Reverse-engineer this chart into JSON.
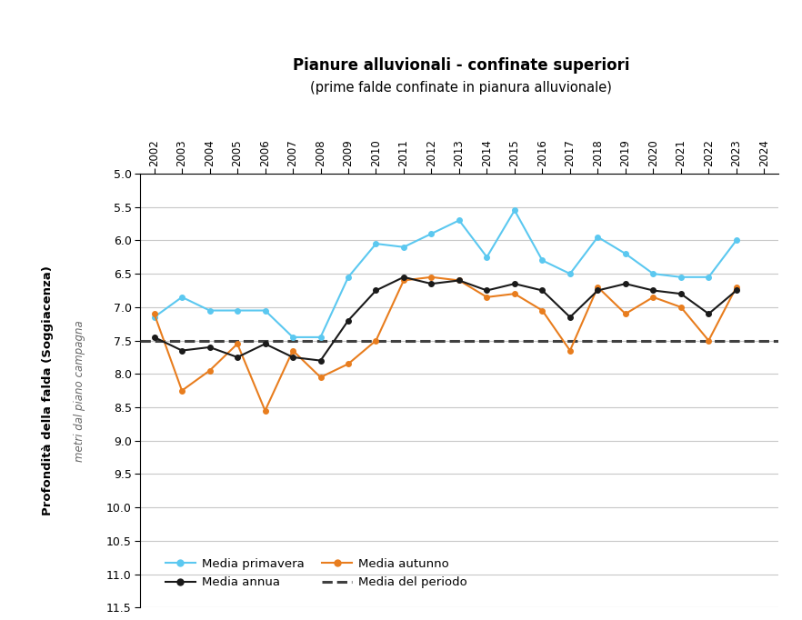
{
  "title_line1": "Pianure alluvionali - confinate superiori",
  "title_line2": "(prime falde confinate in pianura alluvionale)",
  "ylabel_main": "Profondità della falda (Soggiacenza)",
  "ylabel_italic": "metri dal piano campagna",
  "years": [
    2002,
    2003,
    2004,
    2005,
    2006,
    2007,
    2008,
    2009,
    2010,
    2011,
    2012,
    2013,
    2014,
    2015,
    2016,
    2017,
    2018,
    2019,
    2020,
    2021,
    2022,
    2023
  ],
  "media_primavera": [
    7.15,
    6.85,
    7.05,
    7.05,
    7.05,
    7.45,
    7.45,
    6.55,
    6.05,
    6.1,
    5.9,
    5.7,
    6.25,
    5.55,
    6.3,
    6.5,
    5.95,
    6.2,
    6.5,
    6.55,
    6.55,
    6.0
  ],
  "media_autunno": [
    7.1,
    8.25,
    7.95,
    7.55,
    8.55,
    7.65,
    8.05,
    7.85,
    7.5,
    6.6,
    6.55,
    6.6,
    6.85,
    6.8,
    7.05,
    7.65,
    6.7,
    7.1,
    6.85,
    7.0,
    7.5,
    6.7
  ],
  "media_annua": [
    7.45,
    7.65,
    7.6,
    7.75,
    7.55,
    7.75,
    7.8,
    7.2,
    6.75,
    6.55,
    6.65,
    6.6,
    6.75,
    6.65,
    6.75,
    7.15,
    6.75,
    6.65,
    6.75,
    6.8,
    7.1,
    6.75
  ],
  "media_periodo": 7.5,
  "ylim_top": 5.0,
  "ylim_bottom": 11.5,
  "yticks": [
    5.0,
    5.5,
    6.0,
    6.5,
    7.0,
    7.5,
    8.0,
    8.5,
    9.0,
    9.5,
    10.0,
    10.5,
    11.0,
    11.5
  ],
  "xtick_start": 2002,
  "xtick_end": 2024,
  "color_primavera": "#5BC8F0",
  "color_autunno": "#E87D1E",
  "color_annua": "#1A1A1A",
  "color_periodo": "#404040",
  "grid_color": "#C8C8C8",
  "legend_labels": [
    "Media primavera",
    "Media annua",
    "Media autunno",
    "Media del periodo"
  ]
}
